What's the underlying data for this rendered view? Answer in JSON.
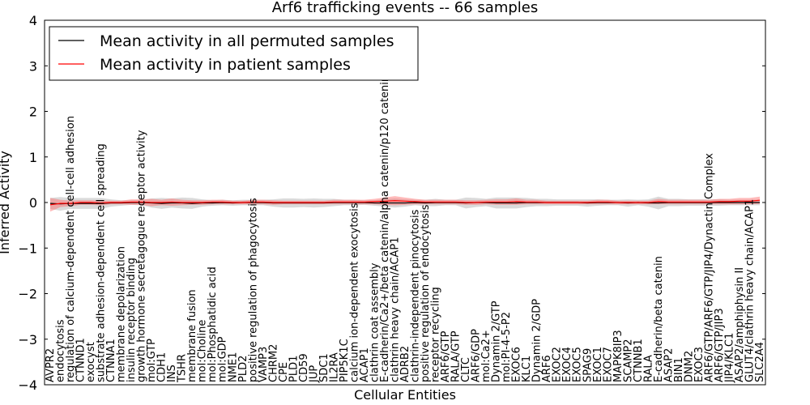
{
  "chart_data": {
    "type": "line",
    "title": "Arf6 trafficking events -- 66 samples",
    "xlabel": "Cellular Entities",
    "ylabel": "Inferred Activity",
    "ylim": [
      -4,
      4
    ],
    "yticks": [
      "−4",
      "−3",
      "−2",
      "−1",
      "0",
      "1",
      "2",
      "3",
      "4"
    ],
    "legend": {
      "placement": "top-left",
      "entries": [
        {
          "name": "Mean activity in all permuted samples",
          "color": "#000000"
        },
        {
          "name": "Mean activity in patient samples",
          "color": "#ff0000"
        }
      ]
    },
    "colors": {
      "permuted": "#000000",
      "patient": "#ff0000",
      "band_permuted": "#bbbbbb",
      "band_patient": "#ff6666"
    },
    "categories": [
      "AVPR2",
      "endocytosis",
      "regulation of calcium-dependent cell-cell adhesion",
      "CTNND1",
      "exocyst",
      "substrate adhesion-dependent cell spreading",
      "CTNNA1",
      "membrane depolarization",
      "insulin receptor binding",
      "growth hormone secretagogue receptor activity",
      "mol:GTP",
      "CDH1",
      "INS",
      "TSHR",
      "membrane fusion",
      "mol:Choline",
      "mol:Phosphatidic acid",
      "mol:GDP",
      "NME1",
      "PLD2",
      "positive regulation of phagocytosis",
      "VAMP3",
      "CHRM2",
      "CPE",
      "PLD1",
      "CD59",
      "JUP",
      "SDC1",
      "IL2RA",
      "PIP5K1C",
      "calcium ion-dependent exocytosis",
      "ACAP1",
      "clathrin coat assembly",
      "E-cadherin/Ca2+/beta catenin/alpha catenin/p120 catenin",
      "clathrin heavy chain/ACAP1",
      "ADRB2",
      "clathrin-independent pinocytosis",
      "positive regulation of endocytosis",
      "receptor recycling",
      "ARF6/GTP",
      "RALA/GTP",
      "CLTC",
      "ARF6/GDP",
      "mol:Ca2+",
      "Dynamin 2/GTP",
      "mol:PI-4-5-P2",
      "EXOC6",
      "KLC1",
      "Dynamin 2/GDP",
      "ARF6",
      "EXOC2",
      "EXOC4",
      "EXOC5",
      "SPAG9",
      "EXOC1",
      "EXOC7",
      "MAPK8IP3",
      "SCAMP2",
      "CTNNB1",
      "RALA",
      "E-cadherin/beta catenin",
      "ASAP2",
      "BIN1",
      "DNM2",
      "EXOC3",
      "ARF6/GTP/ARF6/GTP/JIP4/Dynactin Complex",
      "ARF6/GTP/JIP3",
      "JIP4/KLC1",
      "ASAP2/amphiphysin II",
      "GLUT4/clathrin heavy chain/ACAP1",
      "SLC2A4"
    ],
    "series": [
      {
        "name": "Mean activity in all permuted samples",
        "values": [
          -0.02,
          -0.03,
          -0.02,
          -0.02,
          -0.02,
          -0.02,
          -0.01,
          -0.01,
          0.0,
          0.0,
          -0.01,
          -0.02,
          -0.01,
          -0.01,
          -0.02,
          -0.01,
          -0.01,
          0.0,
          -0.01,
          0.0,
          0.0,
          0.0,
          -0.01,
          -0.01,
          -0.01,
          -0.01,
          -0.01,
          -0.01,
          0.0,
          0.0,
          0.0,
          0.0,
          -0.01,
          -0.01,
          -0.01,
          -0.01,
          0.0,
          -0.01,
          0.0,
          0.0,
          0.0,
          -0.01,
          0.0,
          0.0,
          -0.01,
          -0.01,
          -0.01,
          0.0,
          0.0,
          0.0,
          0.0,
          0.0,
          0.0,
          -0.01,
          0.0,
          0.0,
          0.0,
          -0.01,
          0.0,
          -0.01,
          -0.01,
          0.0,
          0.0,
          0.0,
          0.0,
          0.0,
          0.0,
          0.0,
          0.0,
          0.0,
          0.0
        ],
        "spread": [
          0.12,
          0.15,
          0.12,
          0.12,
          0.12,
          0.12,
          0.08,
          0.06,
          0.05,
          0.06,
          0.1,
          0.12,
          0.1,
          0.12,
          0.12,
          0.08,
          0.06,
          0.06,
          0.06,
          0.06,
          0.06,
          0.06,
          0.08,
          0.1,
          0.1,
          0.09,
          0.1,
          0.09,
          0.08,
          0.06,
          0.06,
          0.05,
          0.06,
          0.08,
          0.1,
          0.08,
          0.06,
          0.07,
          0.08,
          0.06,
          0.06,
          0.12,
          0.1,
          0.08,
          0.12,
          0.12,
          0.12,
          0.1,
          0.08,
          0.08,
          0.07,
          0.07,
          0.07,
          0.08,
          0.07,
          0.06,
          0.06,
          0.08,
          0.06,
          0.08,
          0.14,
          0.08,
          0.08,
          0.07,
          0.07,
          0.07,
          0.07,
          0.06,
          0.06,
          0.06,
          0.06
        ]
      },
      {
        "name": "Mean activity in patient samples",
        "values": [
          -0.05,
          -0.02,
          -0.02,
          0.0,
          0.0,
          -0.01,
          0.0,
          0.0,
          0.01,
          0.01,
          0.0,
          0.0,
          0.01,
          0.0,
          0.0,
          0.0,
          0.01,
          0.01,
          0.0,
          0.0,
          0.01,
          0.01,
          0.0,
          0.0,
          0.0,
          0.0,
          0.0,
          0.0,
          0.01,
          0.01,
          0.01,
          0.01,
          0.02,
          0.03,
          0.04,
          0.03,
          0.02,
          0.01,
          0.01,
          0.01,
          0.01,
          0.0,
          0.0,
          0.01,
          0.01,
          0.01,
          0.02,
          0.01,
          0.01,
          0.0,
          0.0,
          0.0,
          0.0,
          0.0,
          0.01,
          0.01,
          0.0,
          0.0,
          0.0,
          0.0,
          0.02,
          0.01,
          0.01,
          0.01,
          0.01,
          0.01,
          0.02,
          0.02,
          0.03,
          0.03,
          0.05
        ],
        "spread": [
          0.15,
          0.08,
          0.06,
          0.05,
          0.05,
          0.05,
          0.04,
          0.04,
          0.06,
          0.06,
          0.08,
          0.06,
          0.08,
          0.06,
          0.05,
          0.05,
          0.05,
          0.05,
          0.04,
          0.04,
          0.05,
          0.05,
          0.05,
          0.04,
          0.04,
          0.04,
          0.04,
          0.04,
          0.05,
          0.05,
          0.05,
          0.05,
          0.06,
          0.08,
          0.1,
          0.08,
          0.06,
          0.05,
          0.05,
          0.05,
          0.05,
          0.05,
          0.05,
          0.05,
          0.06,
          0.06,
          0.07,
          0.05,
          0.05,
          0.04,
          0.04,
          0.04,
          0.04,
          0.04,
          0.05,
          0.05,
          0.04,
          0.04,
          0.04,
          0.04,
          0.06,
          0.05,
          0.05,
          0.05,
          0.05,
          0.05,
          0.06,
          0.06,
          0.07,
          0.07,
          0.08
        ]
      }
    ]
  }
}
